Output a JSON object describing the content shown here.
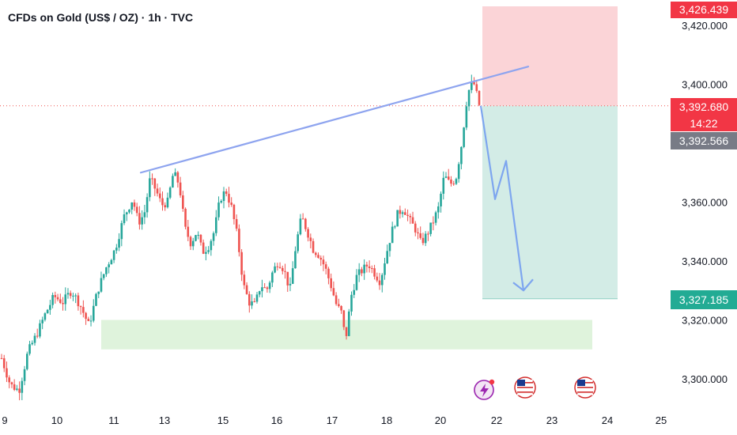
{
  "header": {
    "title": "CFDs on Gold (US$ / OZ) · 1h · TVC"
  },
  "price_tags": {
    "target_high": "3,426.439",
    "last": "3,392.680",
    "countdown": "14:22",
    "bid": "3,392.566",
    "target_low": "3,327.185"
  },
  "colors": {
    "up": "#26a69a",
    "down": "#ef5350",
    "trendline": "#8ea4ef",
    "arrow": "#7ea6ef",
    "stop_zone": "#fbd4d7",
    "profit_zone": "#d3ece6",
    "support_zone": "#dff3dc",
    "tag_red": "#f23645",
    "tag_gray": "#787b86",
    "tag_green": "#22ab94"
  },
  "events": [
    {
      "icon": "lightning-event-icon",
      "color": "#9c27b0"
    },
    {
      "icon": "us-flag-event-icon"
    },
    {
      "icon": "us-flag-event-icon"
    }
  ],
  "chart_data": {
    "type": "candlestick",
    "title": "CFDs on Gold (US$ / OZ) · 1h · TVC",
    "y_ticks": [
      "3,300.000",
      "3,320.000",
      "3,340.000",
      "3,360.000",
      "3,400.000",
      "3,420.000"
    ],
    "y_tick_values": [
      3300,
      3320,
      3340,
      3360,
      3400,
      3420
    ],
    "ylim": [
      3292,
      3434
    ],
    "x_ticks": [
      "9",
      "10",
      "11",
      "13",
      "15",
      "16",
      "17",
      "18",
      "20",
      "22",
      "23",
      "24",
      "25"
    ],
    "grid": false,
    "approx_price_path": [
      {
        "t": 0,
        "price": 3307
      },
      {
        "t": 3,
        "price": 3298
      },
      {
        "t": 6,
        "price": 3296
      },
      {
        "t": 9,
        "price": 3309
      },
      {
        "t": 12,
        "price": 3315
      },
      {
        "t": 15,
        "price": 3322
      },
      {
        "t": 18,
        "price": 3328
      },
      {
        "t": 21,
        "price": 3326
      },
      {
        "t": 24,
        "price": 3330
      },
      {
        "t": 27,
        "price": 3325
      },
      {
        "t": 30,
        "price": 3318
      },
      {
        "t": 33,
        "price": 3330
      },
      {
        "t": 36,
        "price": 3338
      },
      {
        "t": 39,
        "price": 3344
      },
      {
        "t": 42,
        "price": 3355
      },
      {
        "t": 45,
        "price": 3361
      },
      {
        "t": 47,
        "price": 3353
      },
      {
        "t": 49,
        "price": 3356
      },
      {
        "t": 51,
        "price": 3368
      },
      {
        "t": 53,
        "price": 3364
      },
      {
        "t": 55,
        "price": 3359
      },
      {
        "t": 57,
        "price": 3360
      },
      {
        "t": 59,
        "price": 3370
      },
      {
        "t": 61,
        "price": 3366
      },
      {
        "t": 63,
        "price": 3351
      },
      {
        "t": 65,
        "price": 3346
      },
      {
        "t": 67,
        "price": 3350
      },
      {
        "t": 69,
        "price": 3343
      },
      {
        "t": 71,
        "price": 3345
      },
      {
        "t": 73,
        "price": 3350
      },
      {
        "t": 75,
        "price": 3361
      },
      {
        "t": 77,
        "price": 3364
      },
      {
        "t": 79,
        "price": 3358
      },
      {
        "t": 81,
        "price": 3348
      },
      {
        "t": 83,
        "price": 3332
      },
      {
        "t": 85,
        "price": 3326
      },
      {
        "t": 87,
        "price": 3325
      },
      {
        "t": 89,
        "price": 3332
      },
      {
        "t": 91,
        "price": 3330
      },
      {
        "t": 93,
        "price": 3336
      },
      {
        "t": 95,
        "price": 3340
      },
      {
        "t": 97,
        "price": 3337
      },
      {
        "t": 99,
        "price": 3330
      },
      {
        "t": 101,
        "price": 3345
      },
      {
        "t": 103,
        "price": 3355
      },
      {
        "t": 105,
        "price": 3350
      },
      {
        "t": 107,
        "price": 3344
      },
      {
        "t": 109,
        "price": 3342
      },
      {
        "t": 111,
        "price": 3338
      },
      {
        "t": 113,
        "price": 3332
      },
      {
        "t": 115,
        "price": 3325
      },
      {
        "t": 117,
        "price": 3322
      },
      {
        "t": 118,
        "price": 3312
      },
      {
        "t": 120,
        "price": 3328
      },
      {
        "t": 122,
        "price": 3335
      },
      {
        "t": 124,
        "price": 3337
      },
      {
        "t": 126,
        "price": 3339
      },
      {
        "t": 128,
        "price": 3336
      },
      {
        "t": 130,
        "price": 3333
      },
      {
        "t": 132,
        "price": 3342
      },
      {
        "t": 134,
        "price": 3350
      },
      {
        "t": 136,
        "price": 3356
      },
      {
        "t": 138,
        "price": 3358
      },
      {
        "t": 140,
        "price": 3354
      },
      {
        "t": 142,
        "price": 3351
      },
      {
        "t": 144,
        "price": 3346
      },
      {
        "t": 146,
        "price": 3349
      },
      {
        "t": 148,
        "price": 3353
      },
      {
        "t": 150,
        "price": 3358
      },
      {
        "t": 152,
        "price": 3369
      },
      {
        "t": 154,
        "price": 3366
      },
      {
        "t": 156,
        "price": 3368
      },
      {
        "t": 158,
        "price": 3380
      },
      {
        "t": 160,
        "price": 3397
      },
      {
        "t": 162,
        "price": 3401
      },
      {
        "t": 164,
        "price": 3393
      }
    ],
    "last_price": 3392.68,
    "trendline": {
      "from_price": 3370,
      "to_price": 3406
    },
    "projection_path_prices": [
      3392.68,
      3361,
      3374,
      3330
    ],
    "stop_zone": {
      "low": 3392.68,
      "high": 3426.439
    },
    "target_zone": {
      "low": 3327.185,
      "high": 3392.68
    },
    "support_zone": {
      "low": 3310,
      "high": 3320
    }
  }
}
